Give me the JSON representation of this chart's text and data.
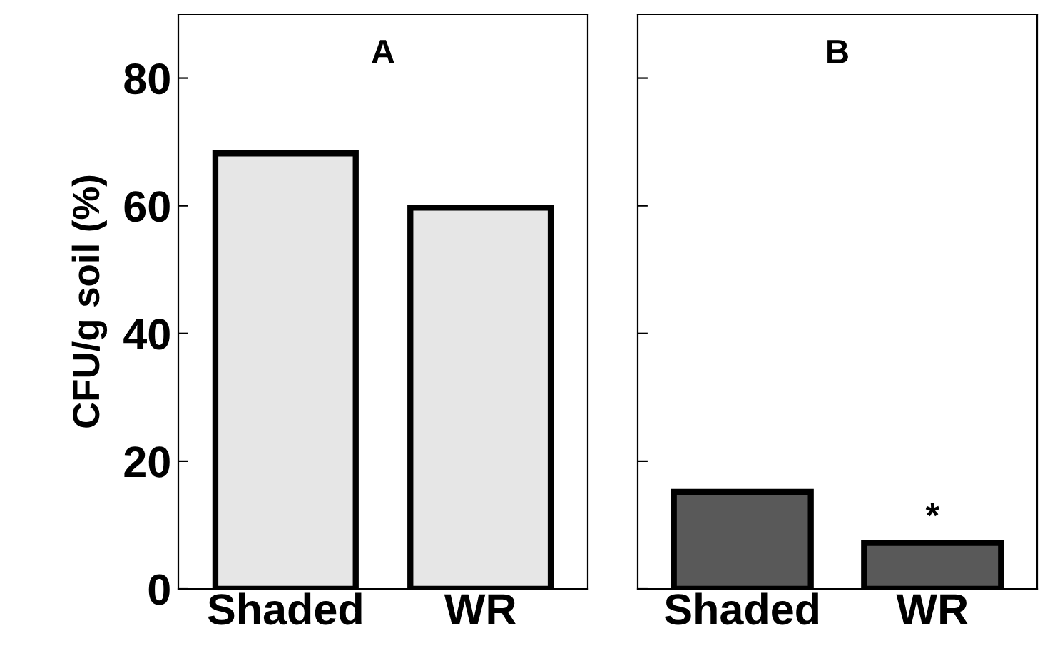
{
  "chart_data": [
    {
      "type": "bar",
      "title": "A",
      "ylabel": "CFU/g soil (%)",
      "categories": [
        "Shaded",
        "WR"
      ],
      "values": [
        68.2,
        59.7
      ],
      "color": "#e6e6e6",
      "ylim": [
        0,
        90
      ],
      "yticks": [
        0,
        20,
        40,
        60,
        80
      ],
      "grid": false
    },
    {
      "type": "bar",
      "title": "B",
      "categories": [
        "Shaded",
        "WR"
      ],
      "values": [
        15.2,
        7.2
      ],
      "color": "#595959",
      "ylim": [
        0,
        90
      ],
      "yticks": [
        0,
        20,
        40,
        60,
        80
      ],
      "tick_labels": "x",
      "grid": false,
      "annotations": [
        {
          "text": "*",
          "x": "WR",
          "y": 7.2
        }
      ]
    }
  ]
}
